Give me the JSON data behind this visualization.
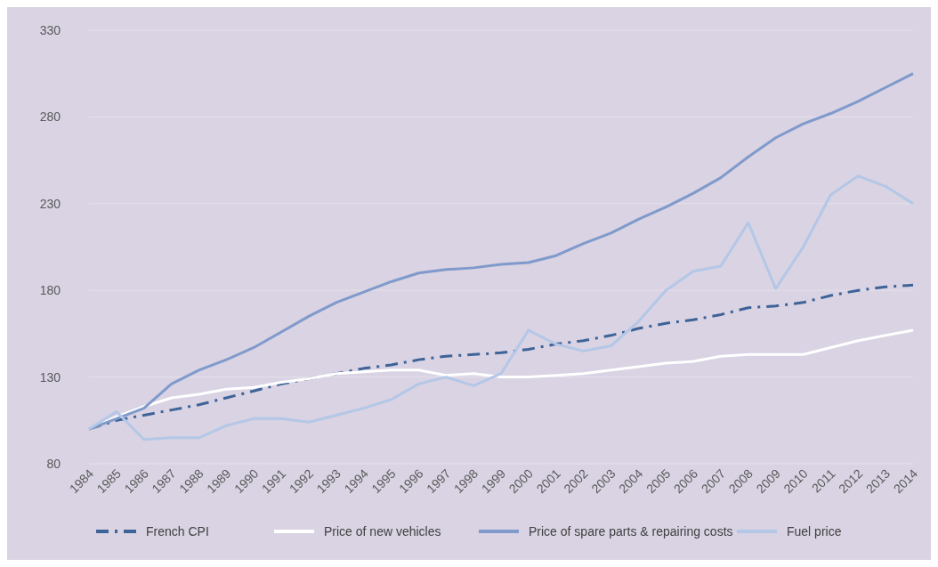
{
  "chart_data": {
    "type": "line",
    "x": [
      1984,
      1985,
      1986,
      1987,
      1988,
      1989,
      1990,
      1991,
      1992,
      1993,
      1994,
      1995,
      1996,
      1997,
      1998,
      1999,
      2000,
      2001,
      2002,
      2003,
      2004,
      2005,
      2006,
      2007,
      2008,
      2009,
      2010,
      2011,
      2012,
      2013,
      2014
    ],
    "xlim": [
      1984,
      2014
    ],
    "xticks": [
      1984,
      1985,
      1986,
      1987,
      1988,
      1989,
      1990,
      1991,
      1992,
      1993,
      1994,
      1995,
      1996,
      1997,
      1998,
      1999,
      2000,
      2001,
      2002,
      2003,
      2004,
      2005,
      2006,
      2007,
      2008,
      2009,
      2010,
      2011,
      2012,
      2013,
      2014
    ],
    "ylim": [
      80,
      330
    ],
    "yticks": [
      80,
      130,
      180,
      230,
      280,
      330
    ],
    "grid": "y",
    "legend": "bottom",
    "series": [
      {
        "name": "French CPI",
        "color": "#3e6398",
        "line_style": "dashed",
        "values": [
          100,
          105,
          108,
          111,
          114,
          118,
          122,
          126,
          129,
          132,
          135,
          137,
          140,
          142,
          143,
          144,
          146,
          149,
          151,
          154,
          158,
          161,
          163,
          166,
          170,
          171,
          173,
          177,
          180,
          182,
          183
        ]
      },
      {
        "name": "Price of new vehicles",
        "color": "#ffffff",
        "line_style": "solid",
        "values": [
          100,
          107,
          113,
          118,
          120,
          123,
          124,
          127,
          129,
          132,
          133,
          134,
          134,
          131,
          132,
          130,
          130,
          131,
          132,
          134,
          136,
          138,
          139,
          142,
          143,
          143,
          143,
          147,
          151,
          154,
          157
        ]
      },
      {
        "name": "Price of spare parts & repairing costs",
        "color": "#7f9acb",
        "line_style": "solid",
        "values": [
          100,
          106,
          112,
          126,
          134,
          140,
          147,
          156,
          165,
          173,
          179,
          185,
          190,
          192,
          193,
          195,
          196,
          200,
          207,
          213,
          221,
          228,
          236,
          245,
          257,
          268,
          276,
          282,
          289,
          297,
          305
        ]
      },
      {
        "name": "Fuel price",
        "color": "#b4c7e7",
        "line_style": "solid",
        "values": [
          100,
          110,
          94,
          95,
          95,
          102,
          106,
          106,
          104,
          108,
          112,
          117,
          126,
          130,
          125,
          132,
          157,
          149,
          145,
          148,
          162,
          180,
          191,
          194,
          219,
          181,
          205,
          235,
          246,
          240,
          230
        ]
      }
    ]
  }
}
